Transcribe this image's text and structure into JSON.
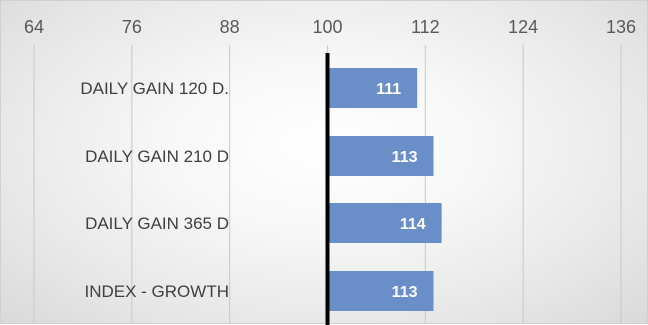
{
  "chart_data": {
    "type": "bar",
    "orientation": "horizontal",
    "title": "",
    "xlabel": "",
    "ylabel": "",
    "categories": [
      "DAILY GAIN 120 D.",
      "DAILY GAIN 210 D",
      "DAILY GAIN 365 D",
      "INDEX - GROWTH"
    ],
    "values": [
      111,
      113,
      114,
      113
    ],
    "data_labels": [
      "111",
      "113",
      "114",
      "113"
    ],
    "baseline": 100,
    "xlim": [
      64,
      136
    ],
    "xticks": [
      64,
      76,
      88,
      100,
      112,
      124,
      136
    ],
    "xtick_labels": [
      "64",
      "76",
      "88",
      "100",
      "112",
      "124",
      "136"
    ],
    "axis_position": "top",
    "grid": "vertical",
    "legend": "none",
    "colors": {
      "bar": "#6a8fc8",
      "baseline": "#000000",
      "grid": "#c8c8c8",
      "data_label": "#ffffff"
    }
  }
}
